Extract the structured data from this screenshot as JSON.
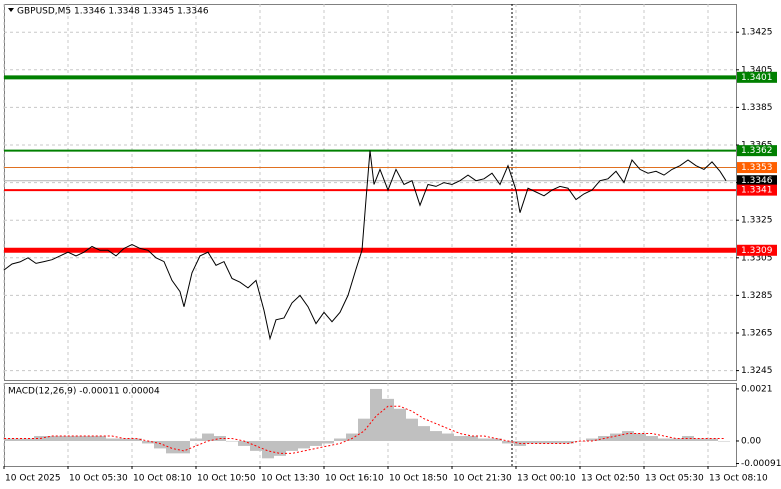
{
  "chart_data": [
    {
      "type": "line",
      "title": "GBPUSD,M5 1.3346 1.3348 1.3345 1.3346",
      "color": "#000000",
      "grid": true,
      "xlim": [
        0,
        366
      ],
      "ylim": [
        1.324,
        1.344
      ],
      "yticks": [
        1.3425,
        1.3405,
        1.3385,
        1.3365,
        1.3345,
        1.3325,
        1.3305,
        1.3285,
        1.3265,
        1.3245
      ],
      "xticks": [
        {
          "value": 0,
          "label": "10 Oct 2025"
        },
        {
          "value": 32,
          "label": "10 Oct 05:30"
        },
        {
          "value": 64,
          "label": "10 Oct 08:10"
        },
        {
          "value": 96,
          "label": "10 Oct 10:50"
        },
        {
          "value": 128,
          "label": "10 Oct 13:30"
        },
        {
          "value": 160,
          "label": "10 Oct 16:10"
        },
        {
          "value": 192,
          "label": "10 Oct 18:50"
        },
        {
          "value": 224,
          "label": "10 Oct 21:30"
        },
        {
          "value": 256,
          "label": "13 Oct 00:10"
        },
        {
          "value": 288,
          "label": "13 Oct 02:50"
        },
        {
          "value": 320,
          "label": "13 Oct 05:30"
        },
        {
          "value": 352,
          "label": "13 Oct 08:10"
        }
      ],
      "separators": [
        254
      ],
      "x": [
        0,
        4,
        8,
        12,
        16,
        20,
        24,
        28,
        32,
        36,
        40,
        44,
        48,
        52,
        56,
        60,
        64,
        68,
        72,
        76,
        80,
        84,
        88,
        90,
        94,
        98,
        102,
        106,
        110,
        114,
        118,
        122,
        126,
        130,
        133,
        136,
        140,
        144,
        148,
        152,
        156,
        160,
        164,
        168,
        172,
        176,
        179,
        181,
        183,
        185,
        188,
        192,
        196,
        200,
        204,
        208,
        212,
        216,
        220,
        224,
        228,
        232,
        236,
        240,
        244,
        248,
        252,
        256,
        258,
        262,
        266,
        270,
        274,
        278,
        282,
        286,
        290,
        294,
        298,
        302,
        306,
        310,
        314,
        318,
        322,
        326,
        330,
        334,
        338,
        342,
        346,
        350,
        354,
        358,
        361
      ],
      "values": [
        1.32985,
        1.33017,
        1.33028,
        1.3305,
        1.3302,
        1.3303,
        1.3304,
        1.3306,
        1.3308,
        1.3306,
        1.3308,
        1.3311,
        1.3309,
        1.3309,
        1.3306,
        1.331,
        1.3312,
        1.331,
        1.3309,
        1.3305,
        1.3303,
        1.3293,
        1.3287,
        1.3279,
        1.3297,
        1.3306,
        1.3308,
        1.3301,
        1.3303,
        1.3294,
        1.3292,
        1.3289,
        1.3293,
        1.3277,
        1.3262,
        1.3272,
        1.3273,
        1.3281,
        1.3285,
        1.3279,
        1.327,
        1.3276,
        1.3271,
        1.3276,
        1.3285,
        1.3299,
        1.3309,
        1.3336,
        1.3362,
        1.3344,
        1.3352,
        1.3341,
        1.3352,
        1.3344,
        1.3346,
        1.3333,
        1.3344,
        1.3343,
        1.3345,
        1.3344,
        1.3346,
        1.3349,
        1.3346,
        1.3347,
        1.335,
        1.3344,
        1.3354,
        1.3341,
        1.3329,
        1.3342,
        1.334,
        1.3338,
        1.3341,
        1.3343,
        1.3342,
        1.3336,
        1.3339,
        1.3341,
        1.3346,
        1.3347,
        1.3351,
        1.3345,
        1.3357,
        1.3352,
        1.335,
        1.3351,
        1.3349,
        1.3352,
        1.3354,
        1.3357,
        1.3354,
        1.3352,
        1.3356,
        1.3351,
        1.3346
      ],
      "levels": [
        {
          "value": 1.3401,
          "color": "#008000",
          "label_color": "#008000",
          "width": 4
        },
        {
          "value": 1.3362,
          "color": "#008000",
          "label_color": "#008000",
          "width": 2
        },
        {
          "value": 1.3353,
          "color": "#e07020",
          "label_color": "#ff6000",
          "width": 1
        },
        {
          "value": 1.3346,
          "color": "#b0b0b0",
          "label_color": "#000000",
          "width": 1
        },
        {
          "value": 1.3341,
          "color": "#ff0000",
          "label_color": "#ff0000",
          "width": 2
        },
        {
          "value": 1.3309,
          "color": "#ff0000",
          "label_color": "#ff0000",
          "width": 5
        }
      ]
    },
    {
      "type": "macd",
      "title": "MACD(12,26,9) -0.00011 0.00004",
      "xlim": [
        0,
        366
      ],
      "ylim": [
        -0.00101,
        0.00234
      ],
      "yticks": [
        0.0021,
        {
          "value": 0,
          "label": "0.00"
        },
        -0.00091
      ],
      "x": [
        0,
        6,
        12,
        18,
        24,
        30,
        36,
        42,
        48,
        54,
        60,
        66,
        72,
        78,
        84,
        90,
        96,
        102,
        108,
        114,
        120,
        126,
        132,
        138,
        144,
        150,
        156,
        162,
        168,
        174,
        180,
        186,
        192,
        198,
        204,
        210,
        216,
        222,
        228,
        234,
        240,
        246,
        252,
        258,
        264,
        270,
        276,
        282,
        288,
        294,
        300,
        306,
        312,
        318,
        324,
        330,
        336,
        342,
        348,
        354,
        360
      ],
      "histogram": {
        "color": "#c0c0c0",
        "values": [
          0.0001,
          0.0001,
          0.0001,
          0.0002,
          0.0002,
          0.0002,
          0.0002,
          0.0002,
          0.0002,
          0.0001,
          0.0001,
          0.0001,
          -0.0001,
          -0.0003,
          -0.0005,
          -0.0005,
          0.0001,
          0.0003,
          0.0002,
          0,
          -0.0002,
          -0.0004,
          -0.0007,
          -0.0006,
          -0.0004,
          -0.0003,
          -0.0002,
          -0.0001,
          0.0001,
          0.0003,
          0.0009,
          0.0021,
          0.0017,
          0.0013,
          0.0009,
          0.0006,
          0.0004,
          0.0003,
          0.0002,
          0.0002,
          0.0001,
          0.0001,
          -0.0001,
          -0.0002,
          -0.0001,
          -0.0001,
          -0.0001,
          -0.0001,
          0,
          0.0001,
          0.0002,
          0.0003,
          0.0004,
          0.0003,
          0.0002,
          0.0001,
          0.0001,
          0.0002,
          0.0001,
          0.0001,
          0
        ]
      },
      "signal": {
        "color": "#ff0000",
        "values": [
          0.0001,
          0.0001,
          0.0001,
          0.0001,
          0.0002,
          0.0002,
          0.0002,
          0.0002,
          0.0002,
          0.0002,
          0.0001,
          0.0001,
          0,
          -0.0001,
          -0.0003,
          -0.0004,
          -0.0002,
          0,
          0.0001,
          0.0001,
          0,
          -0.0002,
          -0.0004,
          -0.0005,
          -0.0005,
          -0.0004,
          -0.0003,
          -0.0002,
          -0.0001,
          0.0001,
          0.0004,
          0.001,
          0.0014,
          0.0014,
          0.0012,
          0.0009,
          0.0007,
          0.0005,
          0.0003,
          0.0002,
          0.0002,
          0.0001,
          0,
          -0.0001,
          -0.0001,
          -0.0001,
          -0.0001,
          -0.0001,
          0,
          0,
          0.0001,
          0.0002,
          0.0003,
          0.0003,
          0.0003,
          0.0002,
          0.0001,
          0.0001,
          0.0001,
          0.0001,
          0.0001
        ]
      }
    }
  ]
}
